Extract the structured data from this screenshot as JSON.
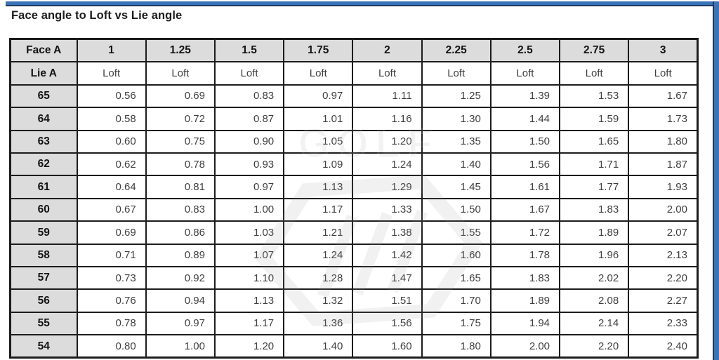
{
  "title": "Face angle to Loft vs Lie angle",
  "accent": {
    "blue": "#3a74b6",
    "navy": "#1b3a63"
  },
  "watermark": {
    "text": "GOLF"
  },
  "table": {
    "corner_label": "Face A",
    "lie_label": "Lie A",
    "loft_label": "Loft",
    "face_angles": [
      "1",
      "1.25",
      "1.5",
      "1.75",
      "2",
      "2.25",
      "2.5",
      "2.75",
      "3"
    ],
    "rows": [
      {
        "lie": "65",
        "values": [
          "0.56",
          "0.69",
          "0.83",
          "0.97",
          "1.11",
          "1.25",
          "1.39",
          "1.53",
          "1.67"
        ]
      },
      {
        "lie": "64",
        "values": [
          "0.58",
          "0.72",
          "0.87",
          "1.01",
          "1.16",
          "1.30",
          "1.44",
          "1.59",
          "1.73"
        ]
      },
      {
        "lie": "63",
        "values": [
          "0.60",
          "0.75",
          "0.90",
          "1.05",
          "1.20",
          "1.35",
          "1.50",
          "1.65",
          "1.80"
        ]
      },
      {
        "lie": "62",
        "values": [
          "0.62",
          "0.78",
          "0.93",
          "1.09",
          "1.24",
          "1.40",
          "1.56",
          "1.71",
          "1.87"
        ]
      },
      {
        "lie": "61",
        "values": [
          "0.64",
          "0.81",
          "0.97",
          "1.13",
          "1.29",
          "1.45",
          "1.61",
          "1.77",
          "1.93"
        ]
      },
      {
        "lie": "60",
        "values": [
          "0.67",
          "0.83",
          "1.00",
          "1.17",
          "1.33",
          "1.50",
          "1.67",
          "1.83",
          "2.00"
        ]
      },
      {
        "lie": "59",
        "values": [
          "0.69",
          "0.86",
          "1.03",
          "1.21",
          "1.38",
          "1.55",
          "1.72",
          "1.89",
          "2.07"
        ]
      },
      {
        "lie": "58",
        "values": [
          "0.71",
          "0.89",
          "1.07",
          "1.24",
          "1.42",
          "1.60",
          "1.78",
          "1.96",
          "2.13"
        ]
      },
      {
        "lie": "57",
        "values": [
          "0.73",
          "0.92",
          "1.10",
          "1.28",
          "1.47",
          "1.65",
          "1.83",
          "2.02",
          "2.20"
        ]
      },
      {
        "lie": "56",
        "values": [
          "0.76",
          "0.94",
          "1.13",
          "1.32",
          "1.51",
          "1.70",
          "1.89",
          "2.08",
          "2.27"
        ]
      },
      {
        "lie": "55",
        "values": [
          "0.78",
          "0.97",
          "1.17",
          "1.36",
          "1.56",
          "1.75",
          "1.94",
          "2.14",
          "2.33"
        ]
      },
      {
        "lie": "54",
        "values": [
          "0.80",
          "1.00",
          "1.20",
          "1.40",
          "1.60",
          "1.80",
          "2.00",
          "2.20",
          "2.40"
        ]
      }
    ]
  },
  "chart_data": {
    "type": "table",
    "title": "Face angle to Loft vs Lie angle",
    "row_label": "Lie A",
    "column_label": "Face A",
    "value_label": "Loft",
    "face_angle_columns": [
      1,
      1.25,
      1.5,
      1.75,
      2,
      2.25,
      2.5,
      2.75,
      3
    ],
    "rows": [
      {
        "lie": 65,
        "loft": [
          0.56,
          0.69,
          0.83,
          0.97,
          1.11,
          1.25,
          1.39,
          1.53,
          1.67
        ]
      },
      {
        "lie": 64,
        "loft": [
          0.58,
          0.72,
          0.87,
          1.01,
          1.16,
          1.3,
          1.44,
          1.59,
          1.73
        ]
      },
      {
        "lie": 63,
        "loft": [
          0.6,
          0.75,
          0.9,
          1.05,
          1.2,
          1.35,
          1.5,
          1.65,
          1.8
        ]
      },
      {
        "lie": 62,
        "loft": [
          0.62,
          0.78,
          0.93,
          1.09,
          1.24,
          1.4,
          1.56,
          1.71,
          1.87
        ]
      },
      {
        "lie": 61,
        "loft": [
          0.64,
          0.81,
          0.97,
          1.13,
          1.29,
          1.45,
          1.61,
          1.77,
          1.93
        ]
      },
      {
        "lie": 60,
        "loft": [
          0.67,
          0.83,
          1.0,
          1.17,
          1.33,
          1.5,
          1.67,
          1.83,
          2.0
        ]
      },
      {
        "lie": 59,
        "loft": [
          0.69,
          0.86,
          1.03,
          1.21,
          1.38,
          1.55,
          1.72,
          1.89,
          2.07
        ]
      },
      {
        "lie": 58,
        "loft": [
          0.71,
          0.89,
          1.07,
          1.24,
          1.42,
          1.6,
          1.78,
          1.96,
          2.13
        ]
      },
      {
        "lie": 57,
        "loft": [
          0.73,
          0.92,
          1.1,
          1.28,
          1.47,
          1.65,
          1.83,
          2.02,
          2.2
        ]
      },
      {
        "lie": 56,
        "loft": [
          0.76,
          0.94,
          1.13,
          1.32,
          1.51,
          1.7,
          1.89,
          2.08,
          2.27
        ]
      },
      {
        "lie": 55,
        "loft": [
          0.78,
          0.97,
          1.17,
          1.36,
          1.56,
          1.75,
          1.94,
          2.14,
          2.33
        ]
      },
      {
        "lie": 54,
        "loft": [
          0.8,
          1.0,
          1.2,
          1.4,
          1.6,
          1.8,
          2.0,
          2.2,
          2.4
        ]
      }
    ]
  }
}
